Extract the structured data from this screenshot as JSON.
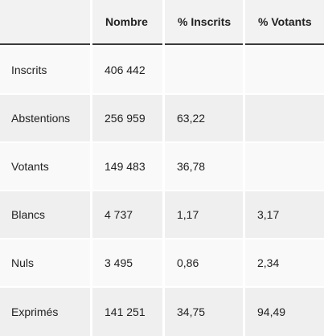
{
  "table": {
    "headers": [
      "",
      "Nombre",
      "% Inscrits",
      "% Votants"
    ],
    "rows": [
      {
        "label": "Inscrits",
        "nombre": "406 442",
        "pct_inscrits": "",
        "pct_votants": ""
      },
      {
        "label": "Abstentions",
        "nombre": "256 959",
        "pct_inscrits": "63,22",
        "pct_votants": ""
      },
      {
        "label": "Votants",
        "nombre": "149 483",
        "pct_inscrits": "36,78",
        "pct_votants": ""
      },
      {
        "label": "Blancs",
        "nombre": "4 737",
        "pct_inscrits": "1,17",
        "pct_votants": "3,17"
      },
      {
        "label": "Nuls",
        "nombre": "3 495",
        "pct_inscrits": "0,86",
        "pct_votants": "2,34"
      },
      {
        "label": "Exprimés",
        "nombre": "141 251",
        "pct_inscrits": "34,75",
        "pct_votants": "94,49"
      }
    ]
  }
}
